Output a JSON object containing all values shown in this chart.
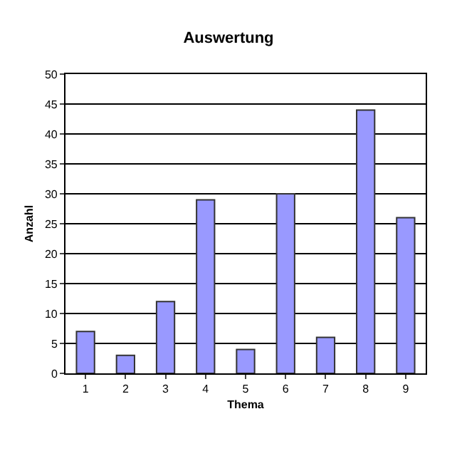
{
  "chart_data": {
    "type": "bar",
    "title": "Auswertung",
    "xlabel": "Thema",
    "ylabel": "Anzahl",
    "categories": [
      "1",
      "2",
      "3",
      "4",
      "5",
      "6",
      "7",
      "8",
      "9"
    ],
    "values": [
      7,
      3,
      12,
      29,
      4,
      30,
      6,
      44,
      26
    ],
    "color": "#9999ff",
    "ylim": [
      0,
      50
    ],
    "yticks": [
      0,
      5,
      10,
      15,
      20,
      25,
      30,
      35,
      40,
      45,
      50
    ],
    "grid": "y"
  }
}
